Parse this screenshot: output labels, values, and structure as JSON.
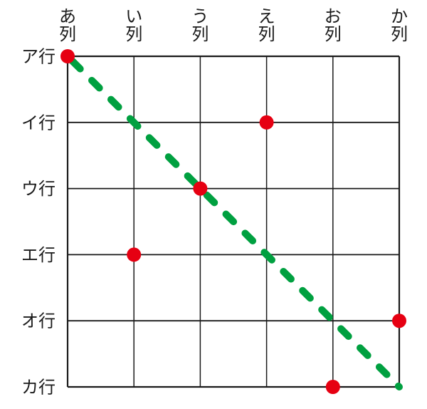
{
  "chart_data": {
    "type": "scatter",
    "x_categories": [
      "あ列",
      "い列",
      "う列",
      "え列",
      "お列",
      "か列"
    ],
    "x_tick_lines": [
      [
        "あ",
        "列"
      ],
      [
        "い",
        "列"
      ],
      [
        "う",
        "列"
      ],
      [
        "え",
        "列"
      ],
      [
        "お",
        "列"
      ],
      [
        "か",
        "列"
      ]
    ],
    "y_categories": [
      "ア行",
      "イ行",
      "ウ行",
      "エ行",
      "オ行",
      "カ行"
    ],
    "points": [
      {
        "x": "あ列",
        "y": "ア行"
      },
      {
        "x": "え列",
        "y": "イ行"
      },
      {
        "x": "う列",
        "y": "ウ行"
      },
      {
        "x": "い列",
        "y": "エ行"
      },
      {
        "x": "か列",
        "y": "オ行"
      },
      {
        "x": "お列",
        "y": "カ行"
      }
    ],
    "diagonal_line": {
      "from": {
        "x": "あ列",
        "y": "ア行"
      },
      "to": {
        "x": "か列",
        "y": "カ行"
      },
      "style": "dashed",
      "color": "#00a040"
    },
    "grid": true,
    "colors": {
      "point": "#e60012",
      "line": "#00a040",
      "grid": "#1a1a1a",
      "background": "#ffffff"
    }
  }
}
